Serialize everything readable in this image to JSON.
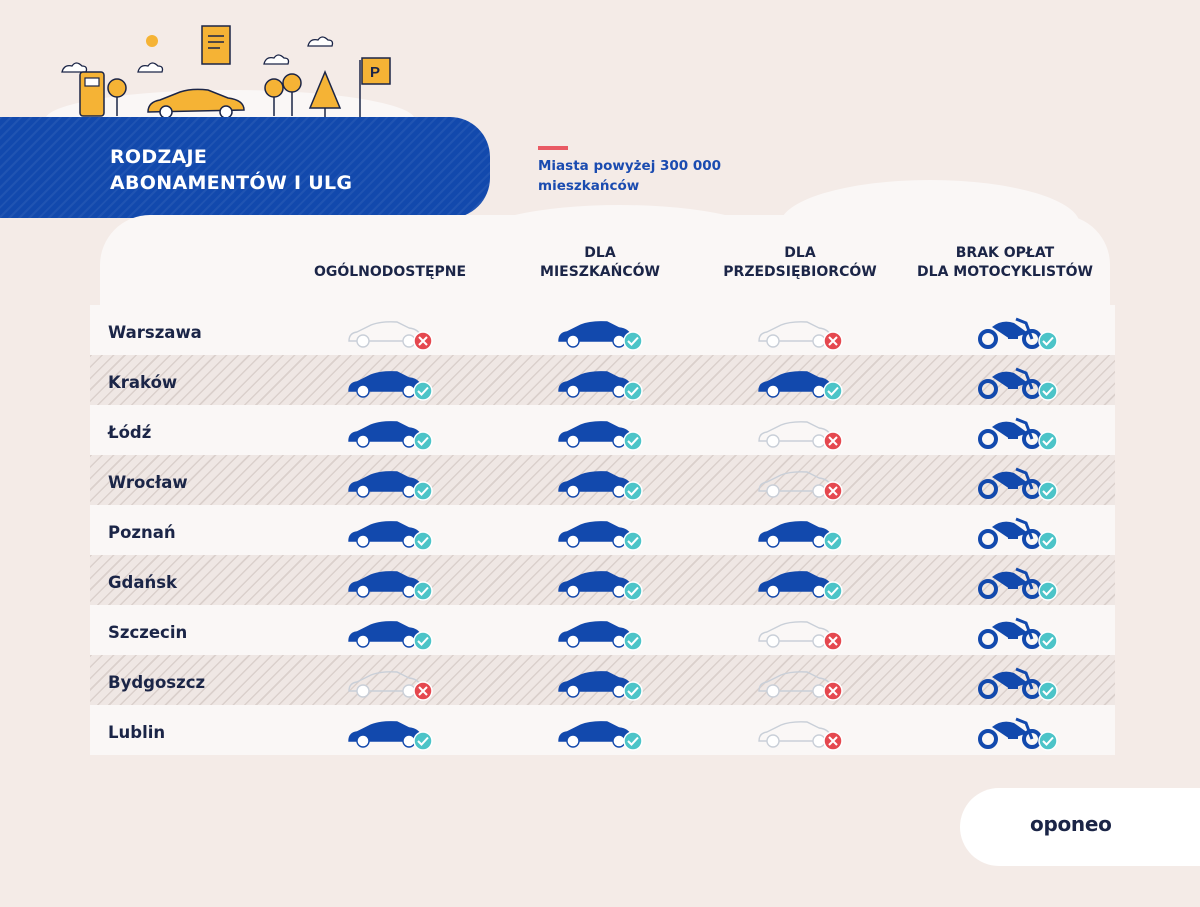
{
  "title_lines": [
    "RODZAJE",
    "ABONAMENTÓW I ULG"
  ],
  "legend": {
    "text": "Miasta powyżej 300 000 mieszkańców",
    "color": "#e95a64"
  },
  "columns": [
    {
      "label": "OGÓLNODOSTĘPNE"
    },
    {
      "label": "DLA MIESZKAŃCÓW"
    },
    {
      "label": "DLA PRZEDSIĘBIORCÓW"
    },
    {
      "label": "BRAK OPŁAT DLA MOTOCYKLISTÓW"
    }
  ],
  "rows": [
    {
      "city": "Warszawa",
      "values": [
        false,
        true,
        false,
        true
      ]
    },
    {
      "city": "Kraków",
      "values": [
        true,
        true,
        true,
        true
      ]
    },
    {
      "city": "Łódź",
      "values": [
        true,
        true,
        false,
        true
      ]
    },
    {
      "city": "Wrocław",
      "values": [
        true,
        true,
        false,
        true
      ]
    },
    {
      "city": "Poznań",
      "values": [
        true,
        true,
        true,
        true
      ]
    },
    {
      "city": "Gdańsk",
      "values": [
        true,
        true,
        true,
        true
      ]
    },
    {
      "city": "Szczecin",
      "values": [
        true,
        true,
        false,
        true
      ]
    },
    {
      "city": "Bydgoszcz",
      "values": [
        false,
        true,
        false,
        true
      ]
    },
    {
      "city": "Lublin",
      "values": [
        true,
        true,
        false,
        true
      ]
    }
  ],
  "brand": "oponeo",
  "colors": {
    "blue": "#1249ad",
    "check": "#4cc4c8",
    "cross": "#e5484f",
    "accent": "#f5b335"
  },
  "icons": {
    "yes_car": "car-icon",
    "no_car": "car-outline-icon",
    "moto": "motorcycle-icon",
    "check": "check-icon",
    "cross": "cross-icon"
  }
}
